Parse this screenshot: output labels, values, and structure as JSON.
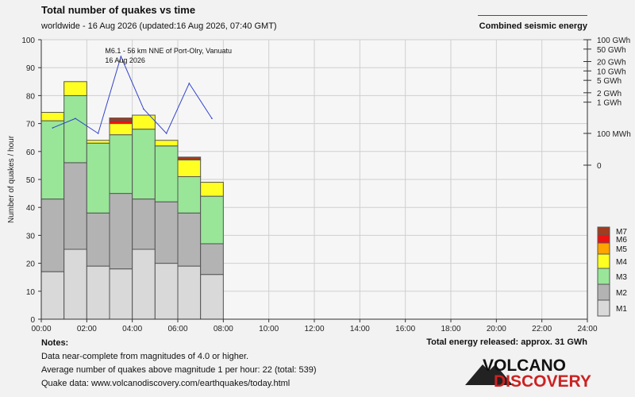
{
  "header": {
    "title": "Total number of quakes vs time",
    "subtitle": "worldwide - 16 Aug 2026 (updated:16 Aug 2026, 07:40 GMT)",
    "energy_legend": "Combined seismic energy"
  },
  "chart_data": {
    "type": "bar",
    "stacked": true,
    "ylabel": "Number of quakes / hour",
    "ylim": [
      0,
      100
    ],
    "y_ticks": [
      0,
      10,
      20,
      30,
      40,
      50,
      60,
      70,
      80,
      90,
      100
    ],
    "x_ticks": [
      "00:00",
      "02:00",
      "04:00",
      "06:00",
      "08:00",
      "10:00",
      "12:00",
      "14:00",
      "16:00",
      "18:00",
      "20:00",
      "22:00",
      "24:00"
    ],
    "x_range_hours": [
      0,
      24
    ],
    "grid": true,
    "legend_placement": "right",
    "bins": [
      {
        "hour": 0,
        "M1": 17,
        "M2": 26,
        "M3": 28,
        "M4": 3,
        "M5": 0,
        "M6": 0,
        "M7": 0
      },
      {
        "hour": 1,
        "M1": 25,
        "M2": 31,
        "M3": 24,
        "M4": 5,
        "M5": 0,
        "M6": 0,
        "M7": 0
      },
      {
        "hour": 2,
        "M1": 19,
        "M2": 19,
        "M3": 25,
        "M4": 1,
        "M5": 0,
        "M6": 0,
        "M7": 0
      },
      {
        "hour": 3,
        "M1": 18,
        "M2": 27,
        "M3": 21,
        "M4": 4,
        "M5": 0,
        "M6": 1,
        "M7": 1
      },
      {
        "hour": 4,
        "M1": 25,
        "M2": 18,
        "M3": 25,
        "M4": 5,
        "M5": 0,
        "M6": 0,
        "M7": 0
      },
      {
        "hour": 5,
        "M1": 20,
        "M2": 22,
        "M3": 20,
        "M4": 2,
        "M5": 0,
        "M6": 0,
        "M7": 0
      },
      {
        "hour": 6,
        "M1": 19,
        "M2": 19,
        "M3": 13,
        "M4": 6,
        "M5": 0,
        "M6": 0,
        "M7": 1
      },
      {
        "hour": 7,
        "M1": 16,
        "M2": 11,
        "M3": 17,
        "M4": 5,
        "M5": 0,
        "M6": 0,
        "M7": 0
      }
    ],
    "magnitude_legend": [
      {
        "name": "M7",
        "color": "#a33b1f"
      },
      {
        "name": "M6",
        "color": "#ee1111"
      },
      {
        "name": "M5",
        "color": "#ffa500"
      },
      {
        "name": "M4",
        "color": "#ffff22"
      },
      {
        "name": "M3",
        "color": "#99e699"
      },
      {
        "name": "M2",
        "color": "#b3b3b3"
      },
      {
        "name": "M1",
        "color": "#d9d9d9"
      }
    ],
    "energy_axis": {
      "ticks": [
        {
          "label": "100 GWh",
          "value_gwh": 100
        },
        {
          "label": "50 GWh",
          "value_gwh": 50
        },
        {
          "label": "20 GWh",
          "value_gwh": 20
        },
        {
          "label": "10 GWh",
          "value_gwh": 10
        },
        {
          "label": "5 GWh",
          "value_gwh": 5
        },
        {
          "label": "2 GWh",
          "value_gwh": 2
        },
        {
          "label": "1 GWh",
          "value_gwh": 1
        },
        {
          "label": "100 MWh",
          "value_gwh": 0.1
        },
        {
          "label": "0",
          "value_gwh": 0
        }
      ]
    },
    "energy_series": {
      "color": "#3344cc",
      "points": [
        {
          "hour": 0.5,
          "gwh": 0.15
        },
        {
          "hour": 1.5,
          "gwh": 0.3
        },
        {
          "hour": 2.5,
          "gwh": 0.1
        },
        {
          "hour": 3.5,
          "gwh": 29
        },
        {
          "hour": 4.5,
          "gwh": 0.6
        },
        {
          "hour": 5.5,
          "gwh": 0.1
        },
        {
          "hour": 6.5,
          "gwh": 4
        },
        {
          "hour": 7.5,
          "gwh": 0.3
        }
      ]
    },
    "annotation": {
      "lines": [
        "M6.1 - 56 km NNE of Port-Olry, Vanuatu",
        "16 Aug 2026"
      ],
      "hour": 3.5
    }
  },
  "notes": {
    "heading": "Notes:",
    "lines": [
      "Data near-complete from magnitudes of 4.0 or higher.",
      "Average number of quakes above magnitude 1 per hour: 22 (total: 539)",
      "Quake data: www.volcanodiscovery.com/earthquakes/today.html"
    ]
  },
  "total_energy": "Total energy released: approx. 31 GWh",
  "logo": {
    "line1": "VOLCANO",
    "line2": "DISCOVERY",
    "accent": "#cc2222"
  }
}
